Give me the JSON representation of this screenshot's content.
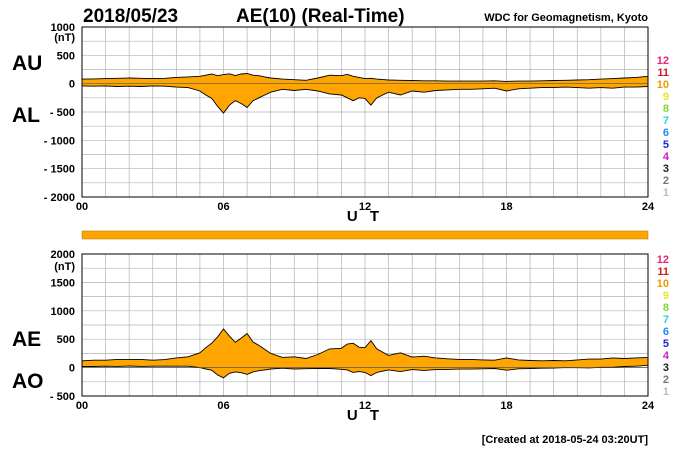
{
  "header": {
    "date": "2018/05/23",
    "title": "AE(10) (Real-Time)",
    "source": "WDC for Geomagnetism, Kyoto"
  },
  "footer": {
    "created": "[Created at 2018-05-24 03:20UT]"
  },
  "colors": {
    "fill": "#ffa500",
    "grid": "#b4b4b4",
    "axis": "#000000"
  },
  "station_counts": [
    {
      "label": "12",
      "color": "#e8267a"
    },
    {
      "label": "11",
      "color": "#d41c1c"
    },
    {
      "label": "10",
      "color": "#ee9a00"
    },
    {
      "label": "9",
      "color": "#e6e62a"
    },
    {
      "label": "8",
      "color": "#7edc2c"
    },
    {
      "label": "7",
      "color": "#2ad6d6"
    },
    {
      "label": "6",
      "color": "#1c8cf0"
    },
    {
      "label": "5",
      "color": "#2424c8"
    },
    {
      "label": "4",
      "color": "#c81ccc"
    },
    {
      "label": "3",
      "color": "#222222"
    },
    {
      "label": "2",
      "color": "#777777"
    },
    {
      "label": "1",
      "color": "#bbbbbb"
    }
  ],
  "chart_data": [
    {
      "type": "area",
      "name": "AU/AL",
      "labels": [
        "AU",
        "AL"
      ],
      "unit": "(nT)",
      "xlabel": "U T",
      "xlim": [
        0,
        24
      ],
      "ylim": [
        -2000,
        1000
      ],
      "yticks": [
        1000,
        500,
        0,
        -500,
        -1000,
        -1500,
        -2000
      ],
      "ytick_labels": [
        "1000",
        "500",
        "0",
        "- 500",
        "- 1000",
        "- 1500",
        "- 2000"
      ],
      "xticks": [
        0,
        6,
        12,
        18,
        24
      ],
      "xtick_labels": [
        "00",
        "06",
        "12",
        "18",
        "24"
      ],
      "x": [
        0,
        0.5,
        1,
        1.5,
        2,
        2.5,
        3,
        3.5,
        4,
        4.5,
        5,
        5.25,
        5.5,
        5.75,
        6,
        6.25,
        6.5,
        6.75,
        7,
        7.25,
        7.5,
        7.75,
        8,
        8.5,
        9,
        9.5,
        10,
        10.5,
        11,
        11.25,
        11.5,
        11.75,
        12,
        12.25,
        12.5,
        13,
        13.5,
        14,
        14.5,
        15,
        15.5,
        16,
        16.5,
        17,
        17.5,
        18,
        18.5,
        19,
        19.5,
        20,
        20.5,
        21,
        21.5,
        22,
        22.5,
        23,
        23.5,
        24
      ],
      "series": [
        {
          "name": "AU",
          "values": [
            80,
            85,
            90,
            95,
            100,
            95,
            90,
            95,
            110,
            120,
            130,
            150,
            170,
            140,
            160,
            175,
            145,
            170,
            180,
            150,
            140,
            120,
            100,
            80,
            70,
            60,
            100,
            150,
            140,
            165,
            130,
            110,
            90,
            95,
            80,
            65,
            60,
            55,
            50,
            50,
            45,
            45,
            45,
            45,
            50,
            40,
            45,
            45,
            50,
            55,
            60,
            65,
            70,
            80,
            90,
            100,
            110,
            130
          ]
        },
        {
          "name": "AL",
          "values": [
            -40,
            -45,
            -40,
            -50,
            -45,
            -50,
            -40,
            -45,
            -60,
            -70,
            -130,
            -200,
            -260,
            -400,
            -520,
            -380,
            -300,
            -350,
            -420,
            -300,
            -250,
            -200,
            -150,
            -100,
            -120,
            -100,
            -130,
            -180,
            -200,
            -250,
            -300,
            -250,
            -260,
            -380,
            -250,
            -150,
            -200,
            -130,
            -150,
            -120,
            -110,
            -100,
            -100,
            -90,
            -80,
            -130,
            -90,
            -80,
            -70,
            -70,
            -60,
            -70,
            -80,
            -70,
            -80,
            -60,
            -60,
            -50
          ]
        }
      ]
    },
    {
      "type": "area",
      "name": "AE/AO",
      "labels": [
        "AE",
        "AO"
      ],
      "unit": "(nT)",
      "xlabel": "U T",
      "xlim": [
        0,
        24
      ],
      "ylim": [
        -500,
        2000
      ],
      "yticks": [
        2000,
        1500,
        1000,
        500,
        0,
        -500
      ],
      "ytick_labels": [
        "2000",
        "1500",
        "1000",
        "500",
        "0",
        "- 500"
      ],
      "xticks": [
        0,
        6,
        12,
        18,
        24
      ],
      "xtick_labels": [
        "00",
        "06",
        "12",
        "18",
        "24"
      ],
      "x": [
        0,
        0.5,
        1,
        1.5,
        2,
        2.5,
        3,
        3.5,
        4,
        4.5,
        5,
        5.25,
        5.5,
        5.75,
        6,
        6.25,
        6.5,
        6.75,
        7,
        7.25,
        7.5,
        7.75,
        8,
        8.5,
        9,
        9.5,
        10,
        10.5,
        11,
        11.25,
        11.5,
        11.75,
        12,
        12.25,
        12.5,
        13,
        13.5,
        14,
        14.5,
        15,
        15.5,
        16,
        16.5,
        17,
        17.5,
        18,
        18.5,
        19,
        19.5,
        20,
        20.5,
        21,
        21.5,
        22,
        22.5,
        23,
        23.5,
        24
      ],
      "series": [
        {
          "name": "AE",
          "values": [
            120,
            130,
            130,
            145,
            145,
            145,
            130,
            140,
            170,
            190,
            260,
            350,
            430,
            540,
            680,
            555,
            445,
            520,
            600,
            450,
            390,
            320,
            250,
            180,
            190,
            160,
            230,
            330,
            340,
            415,
            430,
            360,
            350,
            475,
            330,
            215,
            260,
            185,
            200,
            170,
            155,
            145,
            145,
            135,
            130,
            170,
            135,
            125,
            120,
            125,
            120,
            135,
            150,
            150,
            170,
            160,
            170,
            180
          ]
        },
        {
          "name": "AO",
          "values": [
            20,
            20,
            25,
            22,
            28,
            22,
            25,
            25,
            25,
            25,
            0,
            -25,
            -45,
            -130,
            -180,
            -100,
            -75,
            -90,
            -120,
            -75,
            -55,
            -40,
            -25,
            -10,
            -25,
            -20,
            -15,
            -15,
            -30,
            -40,
            -85,
            -70,
            -85,
            -140,
            -85,
            -40,
            -70,
            -35,
            -50,
            -35,
            -32,
            -27,
            -27,
            -22,
            -15,
            -45,
            -22,
            -17,
            -10,
            -7,
            0,
            -2,
            -5,
            5,
            5,
            20,
            25,
            40
          ]
        }
      ]
    }
  ]
}
